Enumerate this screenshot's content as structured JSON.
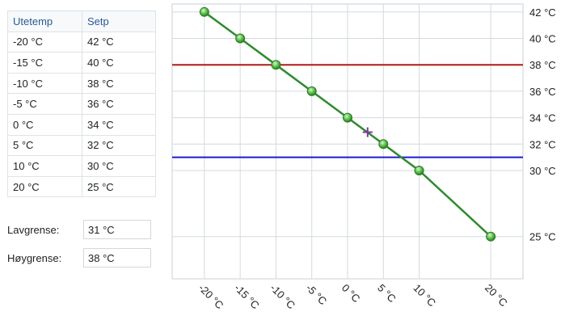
{
  "table": {
    "headers": [
      "Utetemp",
      "Setp"
    ],
    "rows": [
      [
        "-20 °C",
        "42 °C"
      ],
      [
        "-15 °C",
        "40 °C"
      ],
      [
        "-10 °C",
        "38 °C"
      ],
      [
        "-5 °C",
        "36 °C"
      ],
      [
        "0 °C",
        "34 °C"
      ],
      [
        "5 °C",
        "32 °C"
      ],
      [
        "10 °C",
        "30 °C"
      ],
      [
        "20 °C",
        "25 °C"
      ]
    ]
  },
  "limits": {
    "low_label": "Lavgrense:",
    "low_value": "31 °C",
    "high_label": "Høygrense:",
    "high_value": "38 °C"
  },
  "chart_data": {
    "type": "line",
    "x": [
      -20,
      -15,
      -10,
      -5,
      0,
      5,
      10,
      20
    ],
    "series": [
      {
        "values": [
          42,
          40,
          38,
          36,
          34,
          32,
          30,
          25
        ],
        "color": "#2e8b2e"
      }
    ],
    "x_tick_labels": [
      "-20 °C",
      "-15 °C",
      "-10 °C",
      "-5 °C",
      "0 °C",
      "5 °C",
      "10 °C",
      "20 °C"
    ],
    "y_ticks": [
      25,
      30,
      32,
      34,
      36,
      38,
      40,
      42
    ],
    "y_tick_labels": [
      "25 °C",
      "30 °C",
      "32 °C",
      "34 °C",
      "36 °C",
      "38 °C",
      "40 °C",
      "42 °C"
    ],
    "xlim": [
      -24.5,
      24.5
    ],
    "ylim": [
      21.8,
      42.6
    ],
    "grid": true,
    "y_axis_side": "right",
    "high_limit": {
      "value": 38,
      "color": "#b01818"
    },
    "low_limit": {
      "value": 31,
      "color": "#1a1ad0"
    },
    "current_point": {
      "x": 2.8,
      "y": 32.9,
      "color": "#7a3a9a"
    }
  }
}
